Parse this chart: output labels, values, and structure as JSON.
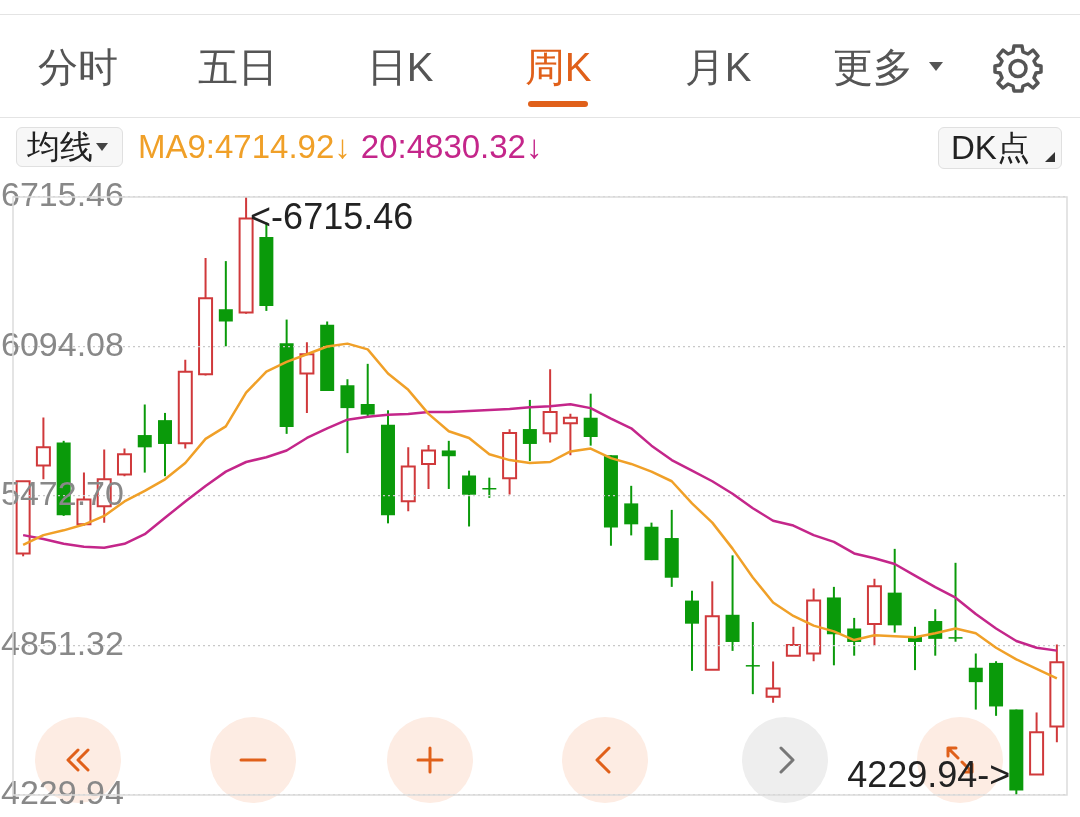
{
  "chart_data": {
    "type": "candlestick",
    "categories": [
      null,
      null,
      null,
      null,
      null,
      null,
      null,
      null,
      null,
      null,
      null,
      null,
      null,
      null,
      null,
      null,
      null,
      null,
      null,
      null,
      null,
      null,
      null,
      null,
      null,
      null,
      null,
      null,
      null,
      null,
      null,
      null,
      null,
      null,
      null,
      null,
      null,
      null,
      null,
      null,
      null,
      null,
      null,
      null,
      null,
      null,
      null,
      null,
      null,
      null,
      null,
      null
    ],
    "ohlc": [
      [
        5234,
        5534,
        5222,
        5534
      ],
      [
        5599,
        5799,
        5542,
        5675
      ],
      [
        5695,
        5702,
        5390,
        5393
      ],
      [
        5355,
        5570,
        5350,
        5458
      ],
      [
        5430,
        5666,
        5362,
        5542
      ],
      [
        5562,
        5670,
        5555,
        5646
      ],
      [
        5726,
        5853,
        5570,
        5675
      ],
      [
        5788,
        5818,
        5555,
        5689
      ],
      [
        5692,
        6039,
        5670,
        5989
      ],
      [
        5979,
        6462,
        5974,
        6295
      ],
      [
        6249,
        6449,
        6095,
        6198
      ],
      [
        6235,
        6715.46,
        6230,
        6626
      ],
      [
        6549,
        6610,
        6242,
        6262
      ],
      [
        6108,
        6206,
        5731,
        5759
      ],
      [
        5982,
        6112,
        5818,
        6062
      ],
      [
        6185,
        6198,
        5909,
        5909
      ],
      [
        5933,
        5958,
        5651,
        5838
      ],
      [
        5855,
        6022,
        5802,
        5811
      ],
      [
        5769,
        5829,
        5359,
        5393
      ],
      [
        5451,
        5675,
        5409,
        5595
      ],
      [
        5606,
        5685,
        5502,
        5662
      ],
      [
        5662,
        5702,
        5502,
        5638
      ],
      [
        5558,
        5578,
        5346,
        5478
      ],
      [
        5506,
        5549,
        5465,
        5502
      ],
      [
        5546,
        5750,
        5479,
        5735
      ],
      [
        5751,
        5872,
        5618,
        5689
      ],
      [
        5733,
        6000,
        5695,
        5822
      ],
      [
        5775,
        5815,
        5642,
        5798
      ],
      [
        5798,
        5898,
        5682,
        5718
      ],
      [
        5642,
        5642,
        5266,
        5342
      ],
      [
        5442,
        5515,
        5309,
        5355
      ],
      [
        5345,
        5362,
        5206,
        5206
      ],
      [
        5298,
        5415,
        5095,
        5133
      ],
      [
        5038,
        5079,
        4746,
        4942
      ],
      [
        4751,
        5118,
        4751,
        4973
      ],
      [
        4979,
        5226,
        4829,
        4866
      ],
      [
        4770,
        4949,
        4649,
        4768
      ],
      [
        4638,
        4785,
        4613,
        4673
      ],
      [
        4809,
        4929,
        4809,
        4853
      ],
      [
        4818,
        5088,
        4786,
        5038
      ],
      [
        5051,
        5095,
        4769,
        4898
      ],
      [
        4922,
        4966,
        4809,
        4866
      ],
      [
        4941,
        5129,
        4851,
        5098
      ],
      [
        5071,
        5253,
        4905,
        4935
      ],
      [
        4889,
        4929,
        4749,
        4866
      ],
      [
        4953,
        5002,
        4809,
        4879
      ],
      [
        4886,
        5195,
        4867,
        4882
      ],
      [
        4759,
        4818,
        4585,
        4699
      ],
      [
        4779,
        4786,
        4559,
        4598
      ],
      [
        4585,
        4585,
        4229.94,
        4249
      ],
      [
        4315,
        4573,
        4315,
        4491
      ],
      [
        4515,
        4855,
        4449,
        4782
      ]
    ],
    "colors": [
      "#d0393b",
      "#d0393b",
      "#0a9a0a",
      "#d0393b",
      "#d0393b",
      "#d0393b",
      "#0a9a0a",
      "#0a9a0a",
      "#d0393b",
      "#d0393b",
      "#0a9a0a",
      "#d0393b",
      "#0a9a0a",
      "#0a9a0a",
      "#d0393b",
      "#0a9a0a",
      "#0a9a0a",
      "#0a9a0a",
      "#0a9a0a",
      "#d0393b",
      "#d0393b",
      "#0a9a0a",
      "#0a9a0a",
      "#0a9a0a",
      "#d0393b",
      "#0a9a0a",
      "#d0393b",
      "#d0393b",
      "#0a9a0a",
      "#0a9a0a",
      "#0a9a0a",
      "#0a9a0a",
      "#0a9a0a",
      "#0a9a0a",
      "#d0393b",
      "#0a9a0a",
      "#0a9a0a",
      "#d0393b",
      "#d0393b",
      "#d0393b",
      "#0a9a0a",
      "#0a9a0a",
      "#d0393b",
      "#0a9a0a",
      "#0a9a0a",
      "#0a9a0a",
      "#0a9a0a",
      "#0a9a0a",
      "#0a9a0a",
      "#0a9a0a",
      "#d0393b",
      "#d0393b"
    ],
    "series": [
      {
        "name": "MA9:4714.92↓",
        "type": "line",
        "color": "#f0a028",
        "values": [
          5270,
          5310,
          5330,
          5354,
          5390,
          5450,
          5494,
          5542,
          5610,
          5710,
          5762,
          5902,
          5990,
          6030,
          6062,
          6094,
          6106,
          6082,
          5982,
          5914,
          5814,
          5742,
          5714,
          5646,
          5622,
          5610,
          5614,
          5658,
          5670,
          5630,
          5606,
          5574,
          5534,
          5442,
          5362,
          5254,
          5134,
          5030,
          4974,
          4934,
          4910,
          4874,
          4894,
          4890,
          4886,
          4902,
          4922,
          4902,
          4842,
          4794,
          4754,
          4715
        ]
      },
      {
        "name": "20:4830.32↓",
        "type": "line",
        "color": "#c4268a",
        "values": [
          5310,
          5294,
          5274,
          5262,
          5258,
          5274,
          5314,
          5382,
          5450,
          5514,
          5574,
          5614,
          5634,
          5662,
          5714,
          5754,
          5790,
          5802,
          5810,
          5814,
          5822,
          5822,
          5826,
          5830,
          5834,
          5842,
          5846,
          5854,
          5838,
          5794,
          5754,
          5682,
          5622,
          5578,
          5534,
          5482,
          5422,
          5370,
          5350,
          5310,
          5282,
          5234,
          5214,
          5190,
          5142,
          5094,
          5050,
          4982,
          4922,
          4870,
          4842,
          4830
        ]
      }
    ],
    "ylim": [
      4229.94,
      6715.46
    ],
    "yticks": [
      4229.94,
      4851.32,
      {
        "value": 5472.7,
        "label": "5472.70"
      },
      6094.08,
      6715.46
    ],
    "grid": "y",
    "tick_labels": "y",
    "legend": "top left",
    "marker": "none",
    "annotations": [
      "分时",
      "五日",
      "日K",
      "周K",
      "月K",
      "更多",
      "均线",
      "DK点",
      "<-6715.46",
      "4229.94->"
    ]
  }
}
